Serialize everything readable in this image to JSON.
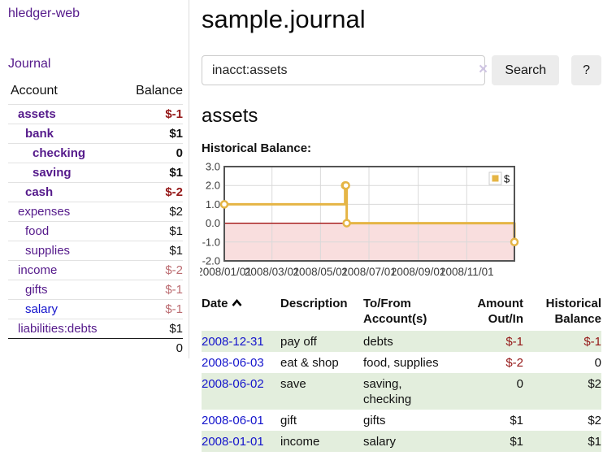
{
  "colors": {
    "link_purple": "#551a8b",
    "link_blue": "#1414cc",
    "negative_strong": "#941616",
    "negative_soft": "#bb6b70",
    "row_green": "#e3eedd",
    "chart_line": "#e5b545",
    "chart_negative_fill": "#f9dede",
    "chart_zero_line": "#990000",
    "chart_border": "#545454",
    "chart_grid": "#d9d9d9"
  },
  "sidebar": {
    "brand": "hledger-web",
    "journal_link": "Journal",
    "accounts": {
      "col_account": "Account",
      "col_balance": "Balance",
      "rows": [
        {
          "name": "assets",
          "balance": "$-1",
          "depth": 1,
          "bold": true,
          "neg": "strong"
        },
        {
          "name": "bank",
          "balance": "$1",
          "depth": 2,
          "bold": true,
          "neg": "none"
        },
        {
          "name": "checking",
          "balance": "0",
          "depth": 3,
          "bold": true,
          "neg": "none"
        },
        {
          "name": "saving",
          "balance": "$1",
          "depth": 3,
          "bold": true,
          "neg": "none"
        },
        {
          "name": "cash",
          "balance": "$-2",
          "depth": 2,
          "bold": true,
          "neg": "strong"
        },
        {
          "name": "expenses",
          "balance": "$2",
          "depth": 1,
          "bold": false,
          "neg": "none"
        },
        {
          "name": "food",
          "balance": "$1",
          "depth": 2,
          "bold": false,
          "neg": "none"
        },
        {
          "name": "supplies",
          "balance": "$1",
          "depth": 2,
          "bold": false,
          "neg": "none"
        },
        {
          "name": "income",
          "balance": "$-2",
          "depth": 1,
          "bold": false,
          "neg": "soft"
        },
        {
          "name": "gifts",
          "balance": "$-1",
          "depth": 2,
          "bold": false,
          "neg": "soft"
        },
        {
          "name": "salary",
          "balance": "$-1",
          "depth": 2,
          "bold": false,
          "neg": "soft",
          "blue": true
        },
        {
          "name": "liabilities:debts",
          "balance": "$1",
          "depth": 1,
          "bold": false,
          "neg": "none"
        }
      ],
      "total": "0"
    }
  },
  "main": {
    "title": "sample.journal",
    "search": {
      "value": "inacct:assets",
      "clear_glyph": "×",
      "search_button": "Search",
      "help_button": "?"
    },
    "account_heading": "assets",
    "chart_heading": "Historical Balance:"
  },
  "chart_data": {
    "type": "line",
    "step": true,
    "title": "Historical Balance:",
    "series": [
      {
        "name": "$",
        "points": [
          [
            "2008-01-01",
            1
          ],
          [
            "2008-06-01",
            2
          ],
          [
            "2008-06-02",
            2
          ],
          [
            "2008-06-03",
            0
          ],
          [
            "2008-12-31",
            -1
          ]
        ]
      }
    ],
    "x_range": [
      "2008-01-01",
      "2008-12-31"
    ],
    "x_ticks": [
      {
        "date": "2008-01-01",
        "label": "2008/01/01"
      },
      {
        "date": "2008-03-01",
        "label": "2008/03/01"
      },
      {
        "date": "2008-05-01",
        "label": "2008/05/01"
      },
      {
        "date": "2008-07-01",
        "label": "2008/07/01"
      },
      {
        "date": "2008-09-01",
        "label": "2008/09/01"
      },
      {
        "date": "2008-11-01",
        "label": "2008/11/01"
      }
    ],
    "y_ticks": [
      "3.0",
      "2.0",
      "1.0",
      "0.0",
      "-1.0",
      "-2.0"
    ],
    "ylim": [
      -2,
      3
    ],
    "grid": true,
    "legend": [
      {
        "label": "$"
      }
    ],
    "legend_position": "top-right",
    "negative_region_shaded": true
  },
  "register": {
    "headers": {
      "date": "Date",
      "description": "Description",
      "accounts": "To/From Account(s)",
      "amount": "Amount Out/In",
      "balance": "Historical Balance"
    },
    "sort_icon": "chevron-up-icon",
    "rows": [
      {
        "date": "2008-12-31",
        "description": "pay off",
        "accounts": "debts",
        "amount": "$-1",
        "amount_neg": true,
        "balance": "$-1",
        "balance_neg": true
      },
      {
        "date": "2008-06-03",
        "description": "eat & shop",
        "accounts": "food, supplies",
        "amount": "$-2",
        "amount_neg": true,
        "balance": "0",
        "balance_neg": false
      },
      {
        "date": "2008-06-02",
        "description": "save",
        "accounts": "saving, checking",
        "amount": "0",
        "amount_neg": false,
        "balance": "$2",
        "balance_neg": false
      },
      {
        "date": "2008-06-01",
        "description": "gift",
        "accounts": "gifts",
        "amount": "$1",
        "amount_neg": false,
        "balance": "$2",
        "balance_neg": false
      },
      {
        "date": "2008-01-01",
        "description": "income",
        "accounts": "salary",
        "amount": "$1",
        "amount_neg": false,
        "balance": "$1",
        "balance_neg": false
      }
    ]
  }
}
